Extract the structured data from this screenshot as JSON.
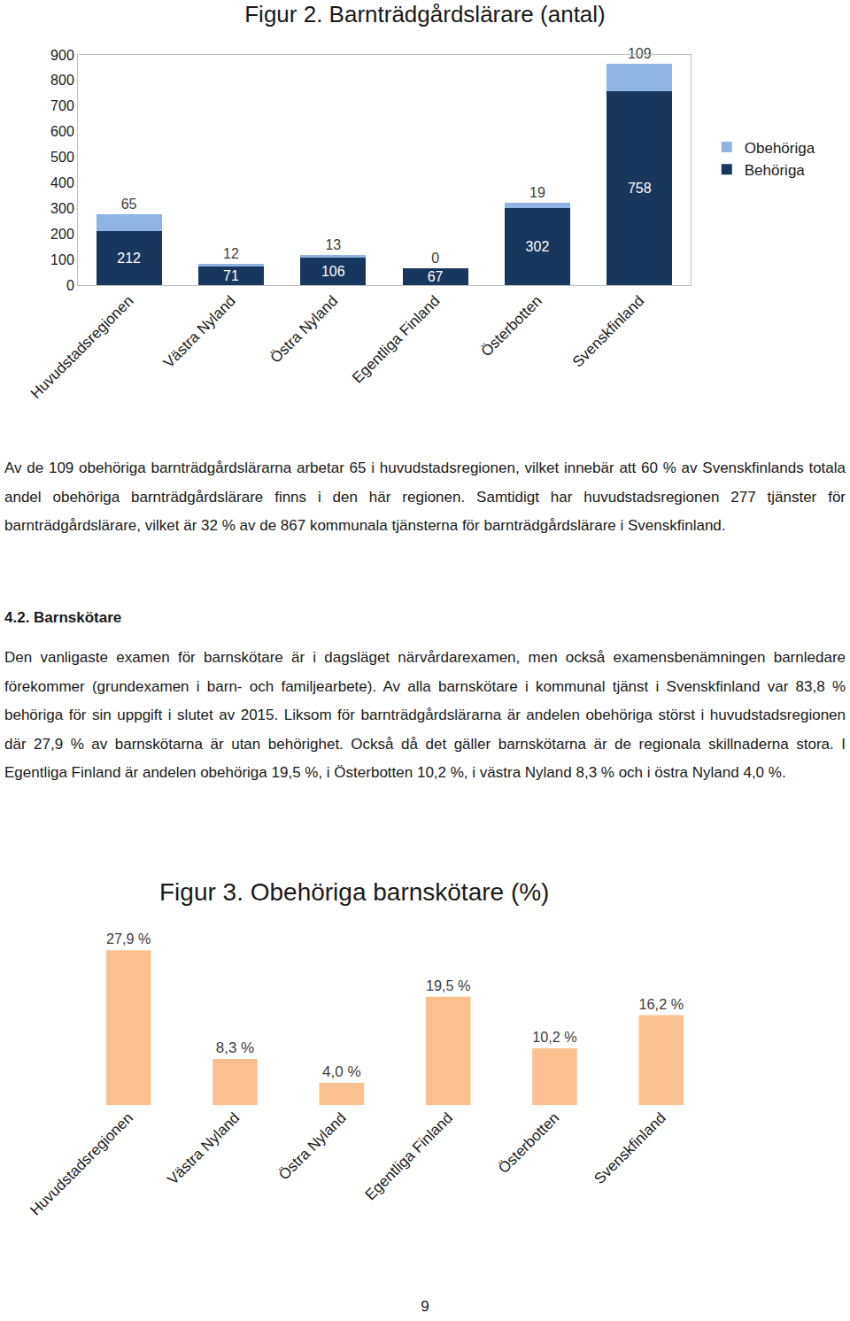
{
  "chart_data": [
    {
      "type": "bar",
      "title": "Figur 2. Barnträdgårdslärare (antal)",
      "categories": [
        "Huvudstadsregionen",
        "Västra Nyland",
        "Östra Nyland",
        "Egentliga Finland",
        "Österbotten",
        "Svenskfinland"
      ],
      "series": [
        {
          "name": "Behöriga",
          "color": "#17375e",
          "values": [
            212,
            71,
            106,
            67,
            302,
            758
          ]
        },
        {
          "name": "Obehöriga",
          "color": "#8db4e2",
          "values": [
            65,
            12,
            13,
            0,
            19,
            109
          ]
        }
      ],
      "stacked": true,
      "data_labels": true,
      "ylim": [
        0,
        900
      ],
      "yticks": [
        0,
        100,
        200,
        300,
        400,
        500,
        600,
        700,
        800,
        900
      ],
      "grid": false,
      "legend": "right"
    },
    {
      "type": "bar",
      "title": "Figur 3. Obehöriga barnskötare (%)",
      "categories": [
        "Huvudstadsregionen",
        "Västra Nyland",
        "Östra Nyland",
        "Egentliga Finland",
        "Österbotten",
        "Svenskfinland"
      ],
      "values": [
        27.9,
        8.3,
        4.0,
        19.5,
        10.2,
        16.2
      ],
      "value_labels": [
        "27,9 %",
        "8,3 %",
        "4,0 %",
        "19,5 %",
        "10,2 %",
        "16,2 %"
      ],
      "color": "#fac090",
      "data_labels": true,
      "ylim": [
        0,
        30
      ],
      "grid": false,
      "tick_labels": "x"
    }
  ],
  "document": {
    "paragraph_1": "Av de 109 obehöriga barnträdgårdslärarna arbetar 65 i huvudstadsregionen, vilket innebär att 60 % av Svenskfinlands totala andel obehöriga barnträdgårdslärare finns i den här regionen. Samtidigt har huvudstadsregionen 277 tjänster för barnträdgårdslärare, vilket är 32 % av de 867 kommunala tjänsterna för barnträdgårdslärare i Svenskfinland.",
    "heading": "4.2. Barnskötare",
    "paragraph_2": "Den vanligaste examen för barnskötare är i dagsläget närvårdarexamen, men också examensbenämningen barnledare förekommer (grundexamen i barn- och familjearbete). Av alla barnskötare i kommunal tjänst i Svenskfinland var 83,8 % behöriga för sin uppgift i slutet av 2015. Liksom för barnträdgårdslärarna är andelen obehöriga störst i huvudstadsregionen där 27,9 % av barnskötarna är utan behörighet. Också då det gäller barnskötarna är de regionala skillnaderna stora. I Egentliga Finland är andelen obehöriga 19,5 %, i Österbotten 10,2 %, i västra Nyland 8,3 % och i östra Nyland 4,0 %.",
    "page_number": "9"
  }
}
